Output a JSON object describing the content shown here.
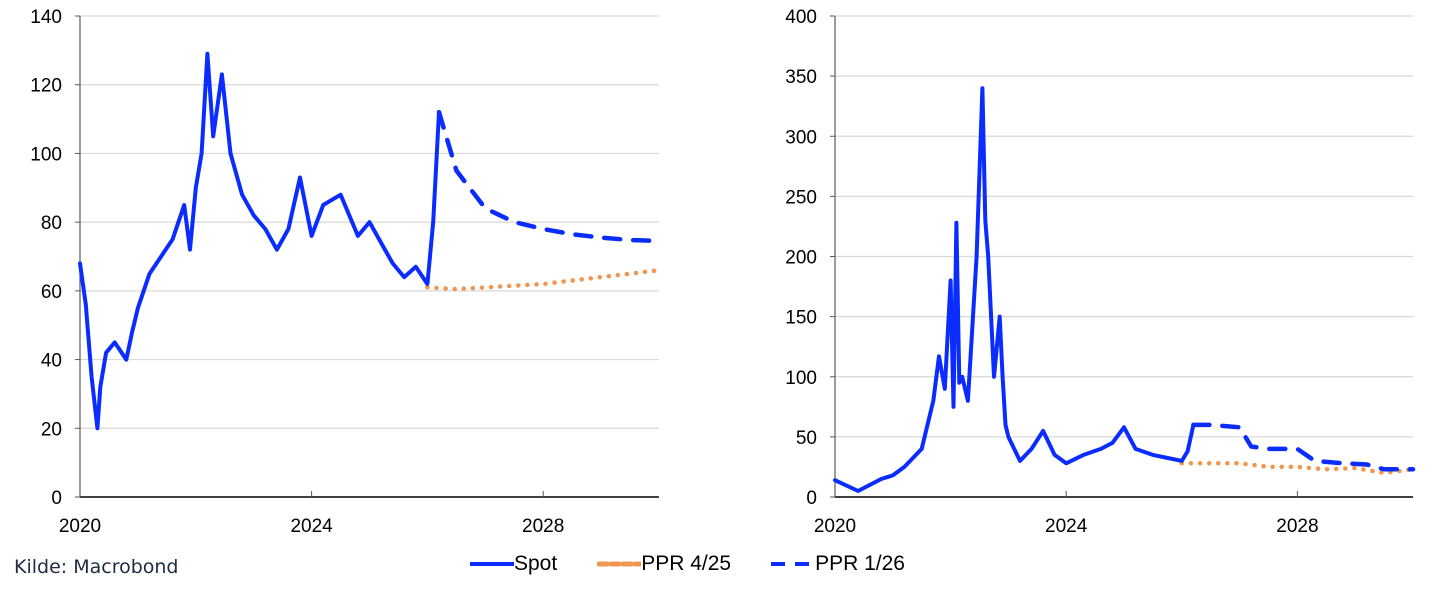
{
  "source": "Kilde: Macrobond",
  "legend": [
    {
      "label": "Spot",
      "color": "#0a2cff",
      "style": "solid"
    },
    {
      "label": "PPR 4/25",
      "color": "#f0964f",
      "style": "dotted"
    },
    {
      "label": "PPR 1/26",
      "color": "#0a2cff",
      "style": "dashed"
    }
  ],
  "colors": {
    "spot": "#0a2cff",
    "ppr_4_25": "#f0964f",
    "ppr_1_26": "#0a2cff",
    "grid": "#d9d9d9"
  },
  "chart_data": [
    {
      "type": "line",
      "title": "",
      "xlabel": "",
      "ylabel": "",
      "xlim": [
        2020,
        2030
      ],
      "ylim": [
        0,
        140
      ],
      "x_ticks": [
        "2020",
        "2024",
        "2028"
      ],
      "y_ticks": [
        0,
        20,
        40,
        60,
        80,
        100,
        120,
        140
      ],
      "grid": true,
      "series": [
        {
          "name": "Spot",
          "x": [
            2020.0,
            2020.1,
            2020.2,
            2020.3,
            2020.35,
            2020.45,
            2020.6,
            2020.8,
            2020.9,
            2021.0,
            2021.2,
            2021.4,
            2021.6,
            2021.8,
            2021.9,
            2022.0,
            2022.1,
            2022.2,
            2022.3,
            2022.45,
            2022.6,
            2022.8,
            2023.0,
            2023.2,
            2023.4,
            2023.6,
            2023.8,
            2024.0,
            2024.2,
            2024.5,
            2024.8,
            2025.0,
            2025.2,
            2025.4,
            2025.6,
            2025.8,
            2026.0,
            2026.1,
            2026.2
          ],
          "y": [
            68,
            56,
            35,
            20,
            32,
            42,
            45,
            40,
            48,
            55,
            65,
            70,
            75,
            85,
            72,
            90,
            100,
            129,
            105,
            123,
            100,
            88,
            82,
            78,
            72,
            78,
            93,
            76,
            85,
            88,
            76,
            80,
            74,
            68,
            64,
            67,
            62,
            80,
            112
          ]
        },
        {
          "name": "PPR 4/25",
          "x": [
            2026.0,
            2026.5,
            2027.0,
            2027.5,
            2028.0,
            2028.5,
            2029.0,
            2029.5,
            2030.0
          ],
          "y": [
            61,
            60.5,
            61,
            61.5,
            62,
            63,
            64,
            65,
            66
          ]
        },
        {
          "name": "PPR 1/26",
          "x": [
            2026.2,
            2026.5,
            2027.0,
            2027.5,
            2028.0,
            2028.5,
            2029.0,
            2029.5,
            2030.0
          ],
          "y": [
            112,
            95,
            84,
            80,
            78,
            76.5,
            75.5,
            74.8,
            74.5
          ]
        }
      ]
    },
    {
      "type": "line",
      "title": "",
      "xlabel": "",
      "ylabel": "",
      "xlim": [
        2020,
        2030
      ],
      "ylim": [
        0,
        400
      ],
      "x_ticks": [
        "2020",
        "2024",
        "2028"
      ],
      "y_ticks": [
        0,
        50,
        100,
        150,
        200,
        250,
        300,
        350,
        400
      ],
      "grid": true,
      "series": [
        {
          "name": "Spot",
          "x": [
            2020.0,
            2020.4,
            2020.8,
            2021.0,
            2021.2,
            2021.5,
            2021.7,
            2021.8,
            2021.9,
            2022.0,
            2022.05,
            2022.1,
            2022.15,
            2022.2,
            2022.3,
            2022.45,
            2022.55,
            2022.6,
            2022.65,
            2022.75,
            2022.85,
            2022.9,
            2022.95,
            2023.0,
            2023.2,
            2023.4,
            2023.6,
            2023.8,
            2024.0,
            2024.3,
            2024.6,
            2024.8,
            2025.0,
            2025.2,
            2025.5,
            2025.8,
            2026.0,
            2026.1,
            2026.2
          ],
          "y": [
            14,
            5,
            15,
            18,
            25,
            40,
            80,
            117,
            90,
            180,
            75,
            228,
            95,
            100,
            80,
            200,
            340,
            230,
            200,
            100,
            150,
            100,
            60,
            50,
            30,
            40,
            55,
            35,
            28,
            35,
            40,
            45,
            58,
            40,
            35,
            32,
            30,
            38,
            60
          ]
        },
        {
          "name": "PPR 4/25",
          "x": [
            2026.0,
            2026.5,
            2027.0,
            2027.5,
            2028.0,
            2028.5,
            2029.0,
            2029.5,
            2030.0
          ],
          "y": [
            28,
            28,
            28,
            25,
            25,
            23,
            24,
            20,
            23
          ]
        },
        {
          "name": "PPR 1/26",
          "x": [
            2026.2,
            2026.5,
            2027.0,
            2027.2,
            2027.5,
            2028.0,
            2028.3,
            2028.8,
            2029.2,
            2029.5,
            2030.0
          ],
          "y": [
            60,
            60,
            58,
            42,
            40,
            40,
            30,
            28,
            27,
            23,
            23
          ]
        }
      ]
    }
  ]
}
